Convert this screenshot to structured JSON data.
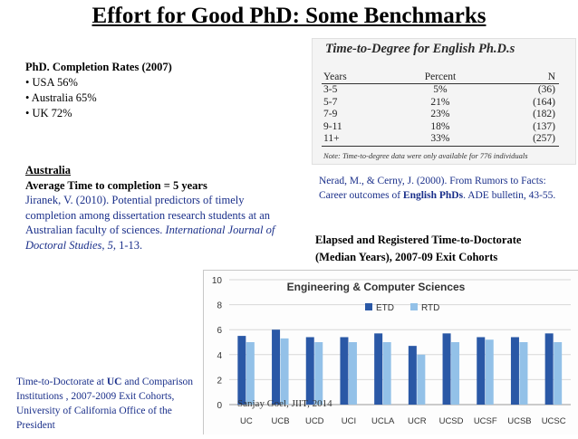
{
  "title": "Effort for Good PhD: Some Benchmarks",
  "completion": {
    "heading": "PhD. Completion Rates (2007)",
    "items": [
      "• USA 56%",
      "• Australia 65%",
      "• UK 72%"
    ]
  },
  "ttd_table": {
    "title": "Time-to-Degree for English Ph.D.s",
    "columns": [
      "Years",
      "Percent",
      "N"
    ],
    "rows": [
      [
        "3-5",
        "5%",
        "(36)"
      ],
      [
        "5-7",
        "21%",
        "(164)"
      ],
      [
        "7-9",
        "23%",
        "(182)"
      ],
      [
        "9-11",
        "18%",
        "(137)"
      ],
      [
        "11+",
        "33%",
        "(257)"
      ]
    ],
    "note": "Note: Time-to-degree data were only available for 776 individuals"
  },
  "nerad": {
    "pre": "Nerad, M., & Cerny, J. (2000). From  Rumors to Facts: Career outcomes of ",
    "bold": "English PhDs",
    "post": ". ADE bulletin, 43-55."
  },
  "australia": {
    "heading": "Australia",
    "highlight": "Average Time to completion = 5 years",
    "ref_pre": "Jiranek, V. (2010). Potential predictors of timely completion among dissertation research students at an Australian faculty of sciences. ",
    "ref_journal": "International Journal of Doctoral Studies",
    "ref_sep1": ", ",
    "ref_volume": "5",
    "ref_post": ", 1-13."
  },
  "elapsed": {
    "line1": "Elapsed and Registered Time-to-Doctorate",
    "line2": "(Median Years), 2007-09 Exit Cohorts"
  },
  "chart_data": {
    "type": "bar",
    "title": "Engineering & Computer Sciences",
    "categories": [
      "UC",
      "UCB",
      "UCD",
      "UCI",
      "UCLA",
      "UCR",
      "UCSD",
      "UCSF",
      "UCSB",
      "UCSC"
    ],
    "series": [
      {
        "name": "ETD",
        "values": [
          5.5,
          6.0,
          5.4,
          5.4,
          5.7,
          4.7,
          5.7,
          5.4,
          5.4,
          5.7
        ],
        "color": "#2a58a6"
      },
      {
        "name": "RTD",
        "values": [
          5.0,
          5.3,
          5.0,
          5.0,
          5.0,
          4.0,
          5.0,
          5.2,
          5.0,
          5.0
        ],
        "color": "#93c1e8"
      }
    ],
    "yticks": [
      0,
      2,
      4,
      6,
      8,
      10
    ],
    "ylim": [
      0,
      10
    ],
    "legend": "top",
    "grid": true
  },
  "uc_note": {
    "pre": "Time-to-Doctorate at ",
    "bold": "UC",
    "post": " and Comparison Institutions , 2007-2009 Exit Cohorts, University of California Office of the President"
  },
  "footer": "Sanjay Goel, JIIT, 2014"
}
